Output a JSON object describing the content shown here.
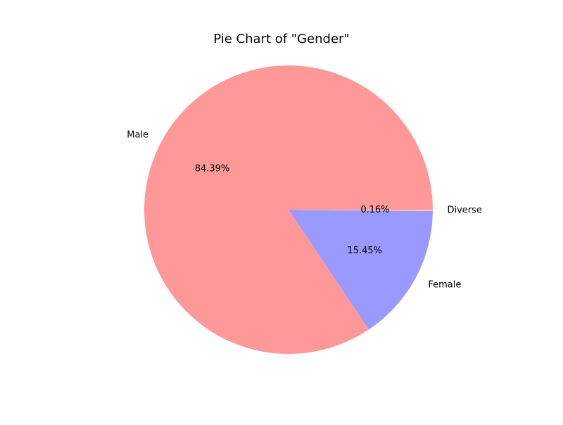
{
  "chart_data": {
    "type": "pie",
    "title": "Pie Chart of \"Gender\"",
    "slices": [
      {
        "label": "Male",
        "value": 84.39,
        "pct_label": "84.39%",
        "color": "#ff9999"
      },
      {
        "label": "Female",
        "value": 15.45,
        "pct_label": "15.45%",
        "color": "#9999ff"
      },
      {
        "label": "Diverse",
        "value": 0.16,
        "pct_label": "0.16%",
        "color": "#ffcc99"
      }
    ],
    "start_angle": 0,
    "direction": "counterclockwise"
  }
}
